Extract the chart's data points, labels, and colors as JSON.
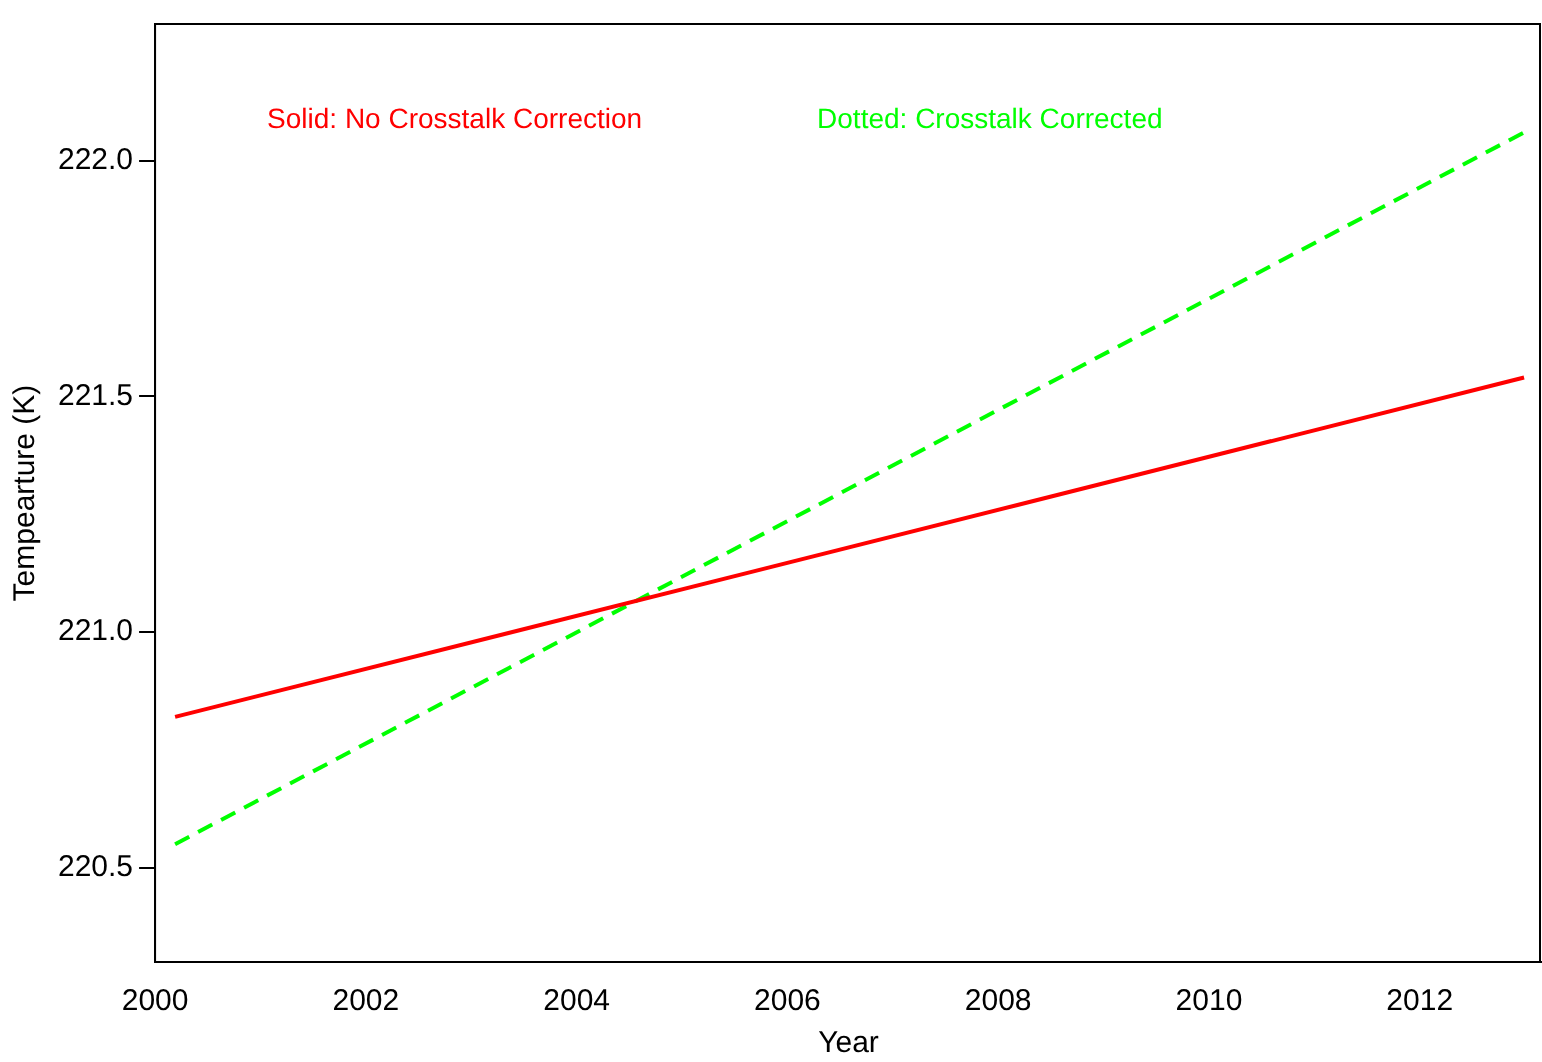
{
  "chart_data": {
    "type": "line",
    "xlabel": "Year",
    "ylabel": "Tempearture (K)",
    "xlim": [
      2000,
      2013.16
    ],
    "xticks": [
      2000,
      2002,
      2004,
      2006,
      2008,
      2010,
      2012
    ],
    "ylim": [
      220.3,
      222.29
    ],
    "yticks": [
      220.5,
      {
        "value": 221,
        "label": "221.0"
      },
      221.5,
      {
        "value": 222,
        "label": "222.0"
      }
    ],
    "x": [
      2000.19,
      2012.99
    ],
    "series": [
      {
        "color": "#ff0000",
        "line_style": "solid",
        "values": [
          220.82,
          221.54
        ]
      },
      {
        "color": "#00ff00",
        "line_style": "dashed",
        "values": [
          220.55,
          222.06
        ]
      }
    ],
    "annotations": [
      "Solid: No Crosstalk Correction",
      "Dotted: Crosstalk Corrected"
    ],
    "grid": false,
    "legend": false,
    "marker": "none"
  }
}
